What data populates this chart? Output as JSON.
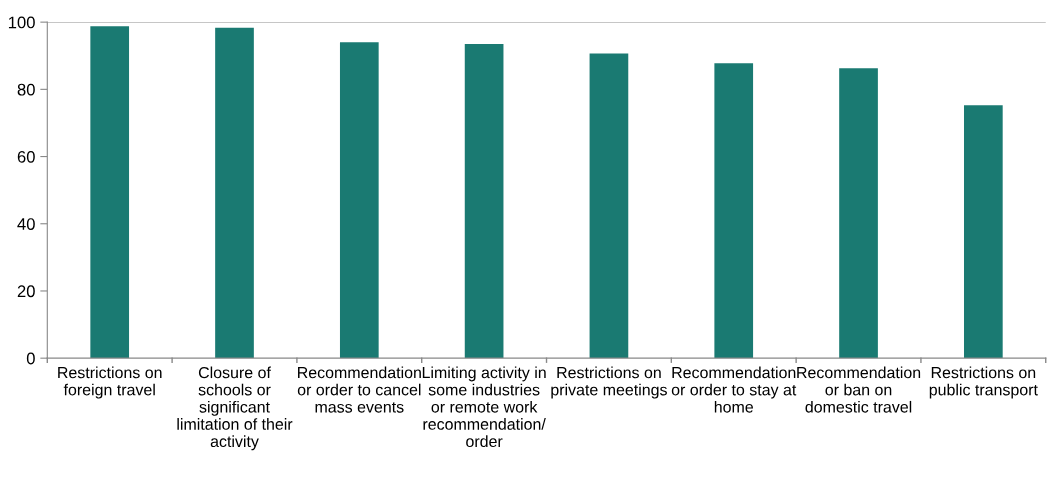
{
  "chart_data": {
    "type": "bar",
    "categories": [
      "Restrictions on\nforeign travel",
      "Closure of\nschools or\nsignificant\nlimitation of their\nactivity",
      "Recommendation\nor order to cancel\nmass events",
      "Limiting activity in\nsome industries\nor remote work\nrecommendation/\norder",
      "Restrictions on\nprivate meetings",
      "Recommendation\nor order to stay at\nhome",
      "Recommendation\nor ban on\ndomestic travel",
      "Restrictions on\npublic transport"
    ],
    "values": [
      98.8,
      98.3,
      94,
      93.5,
      90.7,
      87.8,
      86.3,
      75.3
    ],
    "color": "#1a7a72",
    "ylim": [
      0,
      100
    ],
    "yticks": [
      0,
      20,
      40,
      60,
      80,
      100
    ],
    "grid": false
  }
}
